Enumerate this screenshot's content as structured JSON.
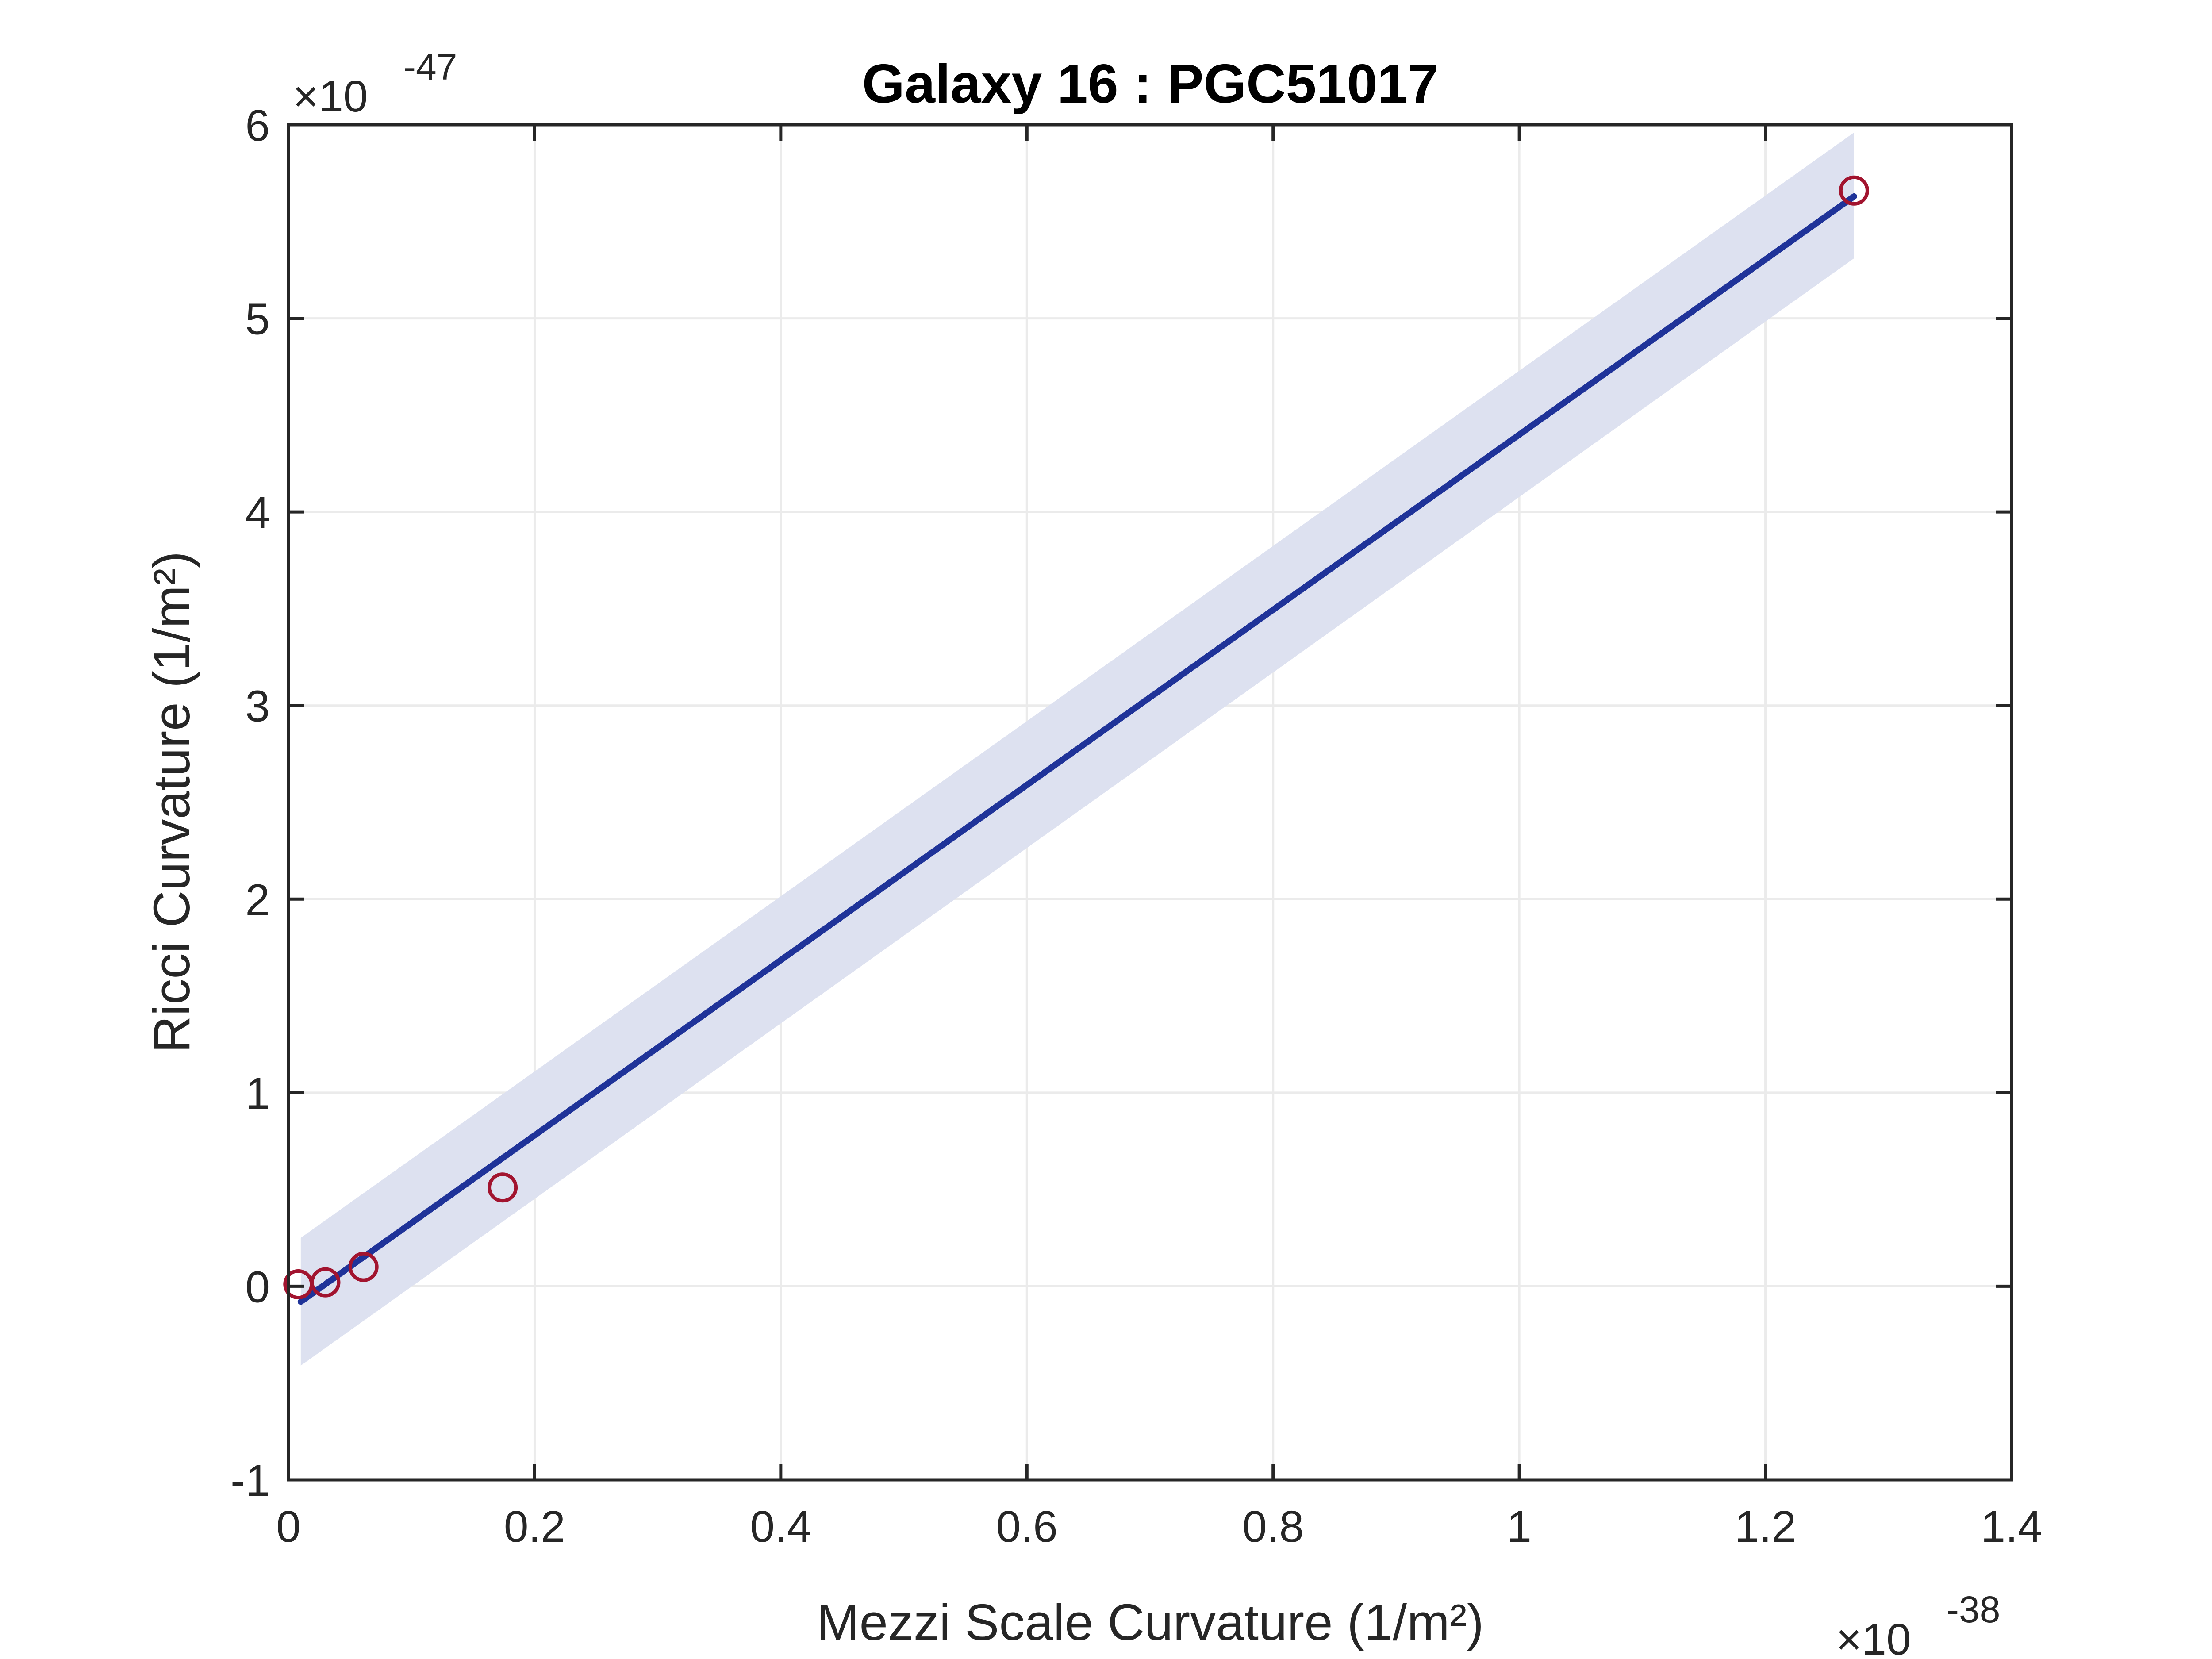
{
  "chart_data": {
    "type": "scatter",
    "title": "Galaxy 16 : PGC51017",
    "xlabel": "Mezzi Scale Curvature (1/m²)",
    "ylabel": "Ricci Curvature (1/m²)",
    "x_exponent_prefix": "×10",
    "x_exponent": "-38",
    "y_exponent_prefix": "×10",
    "y_exponent": "-47",
    "xlim": [
      0,
      1.4
    ],
    "ylim": [
      -1,
      6
    ],
    "xticks": [
      0,
      0.2,
      0.4,
      0.6,
      0.8,
      1,
      1.2,
      1.4
    ],
    "xtick_labels": [
      "0",
      "0.2",
      "0.4",
      "0.6",
      "0.8",
      "1",
      "1.2",
      "1.4"
    ],
    "yticks": [
      -1,
      0,
      1,
      2,
      3,
      4,
      5,
      6
    ],
    "ytick_labels": [
      "-1",
      "0",
      "1",
      "2",
      "3",
      "4",
      "5",
      "6"
    ],
    "grid": true,
    "points": {
      "x": [
        0.008,
        0.03,
        0.061,
        0.174,
        1.272
      ],
      "y": [
        0.01,
        0.02,
        0.1,
        0.51,
        5.66
      ]
    },
    "fit_line": {
      "x": [
        0.01,
        1.272
      ],
      "y": [
        -0.08,
        5.63
      ]
    },
    "confidence_band": {
      "x": [
        0.01,
        1.272
      ],
      "upper": [
        0.25,
        5.96
      ],
      "lower": [
        -0.41,
        5.31
      ]
    },
    "colors": {
      "points": "#a2142f",
      "fit_line": "#1f3399",
      "band": "#dde1f0",
      "axes": "#262626",
      "grid": "#ebebeb"
    }
  }
}
